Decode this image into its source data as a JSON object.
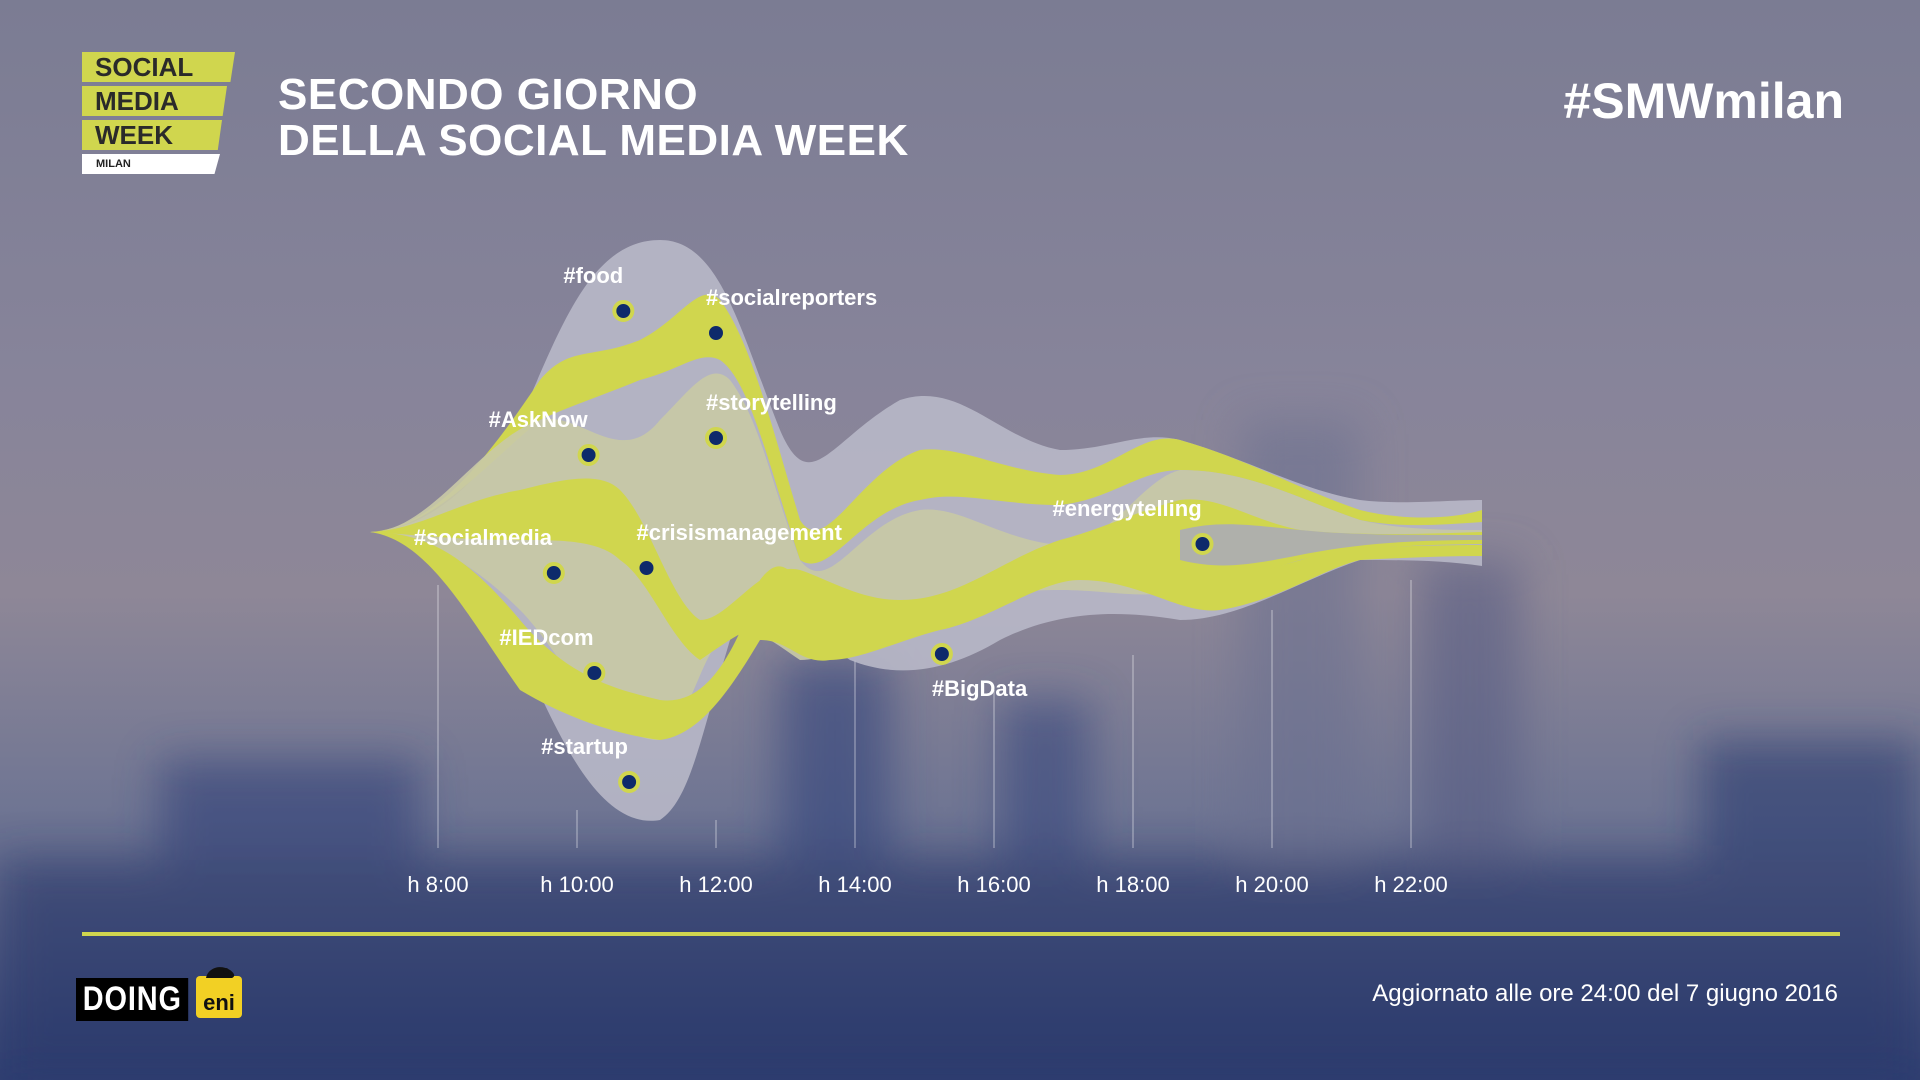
{
  "logo": {
    "line1": "SOCIAL",
    "line2": "MEDIA",
    "line3": "WEEK",
    "city": "MILAN"
  },
  "title": {
    "line1": "SECONDO GIORNO",
    "line2": "DELLA SOCIAL MEDIA WEEK"
  },
  "hashtag": "#SMWmilan",
  "footer": {
    "brand1": "DOING",
    "brand2": "eni",
    "updated": "Aggiornato alle ore 24:00 del 7 giugno 2016"
  },
  "colors": {
    "accent": "#d0d64e",
    "stream_light": "#c9caa8",
    "stream_grey": "#b3b3c3",
    "marker": "#0e2a6b"
  },
  "chart_data": {
    "type": "area",
    "x_ticks": [
      "h 8:00",
      "h 10:00",
      "h 12:00",
      "h 14:00",
      "h 16:00",
      "h 18:00",
      "h 20:00",
      "h 22:00"
    ],
    "peaks": [
      {
        "tag": "#food",
        "time": "10:40"
      },
      {
        "tag": "#socialreporters",
        "time": "12:00"
      },
      {
        "tag": "#storytelling",
        "time": "12:00"
      },
      {
        "tag": "#AskNow",
        "time": "10:10"
      },
      {
        "tag": "#socialmedia",
        "time": "9:40"
      },
      {
        "tag": "#crisismanagement",
        "time": "11:00"
      },
      {
        "tag": "#IEDcom",
        "time": "10:15"
      },
      {
        "tag": "#startup",
        "time": "10:45"
      },
      {
        "tag": "#BigData",
        "time": "15:15"
      },
      {
        "tag": "#energytelling",
        "time": "19:00"
      }
    ]
  }
}
